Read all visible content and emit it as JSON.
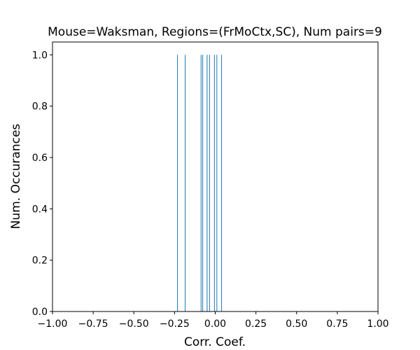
{
  "chart_data": {
    "type": "bar",
    "title": "Mouse=Waksman, Regions=(FrMoCtx,SC), Num pairs=9",
    "xlabel": "Corr. Coef.",
    "ylabel": "Num. Occurances",
    "xlim": [
      -1.0,
      1.0
    ],
    "ylim": [
      0.0,
      1.05
    ],
    "xticks": [
      -1.0,
      -0.75,
      -0.5,
      -0.25,
      0.0,
      0.25,
      0.5,
      0.75,
      1.0
    ],
    "xtick_labels": [
      "−1.00",
      "−0.75",
      "−0.50",
      "−0.25",
      "0.00",
      "0.25",
      "0.50",
      "0.75",
      "1.00"
    ],
    "yticks": [
      0.0,
      0.2,
      0.4,
      0.6,
      0.8,
      1.0
    ],
    "ytick_labels": [
      "0.0",
      "0.2",
      "0.4",
      "0.6",
      "0.8",
      "1.0"
    ],
    "x": [
      -0.232,
      -0.185,
      -0.087,
      -0.077,
      -0.05,
      -0.035,
      -0.005,
      0.01,
      0.039
    ],
    "values": [
      1,
      1,
      1,
      1,
      1,
      1,
      1,
      1,
      1
    ],
    "bar_color": "#1f77b4",
    "grid": false,
    "legend": "none"
  }
}
